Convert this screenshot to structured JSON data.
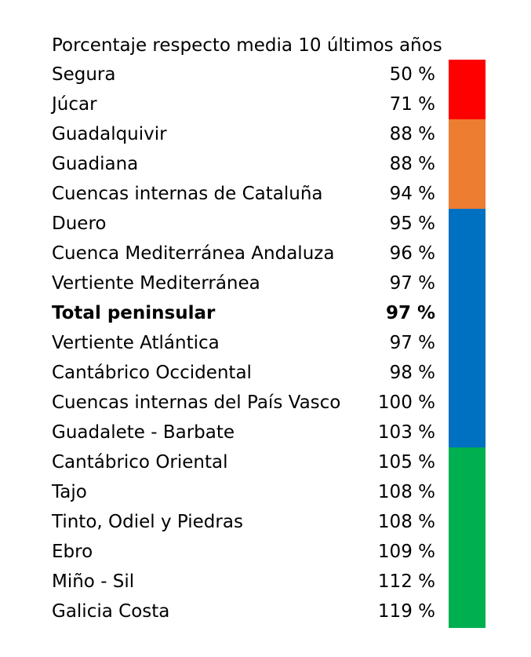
{
  "title": "Porcentaje respecto media 10 últimos años",
  "chart_data": {
    "type": "table",
    "title": "Porcentaje respecto media 10 últimos años",
    "unit": "%",
    "rows": [
      {
        "name": "Segura",
        "value": 50,
        "label": "50 %",
        "bold": false
      },
      {
        "name": "Júcar",
        "value": 71,
        "label": "71 %",
        "bold": false
      },
      {
        "name": "Guadalquivir",
        "value": 88,
        "label": "88 %",
        "bold": false
      },
      {
        "name": "Guadiana",
        "value": 88,
        "label": "88 %",
        "bold": false
      },
      {
        "name": "Cuencas internas de Cataluña",
        "value": 94,
        "label": "94 %",
        "bold": false
      },
      {
        "name": "Duero",
        "value": 95,
        "label": "95 %",
        "bold": false
      },
      {
        "name": "Cuenca Mediterránea Andaluza",
        "value": 96,
        "label": "96 %",
        "bold": false
      },
      {
        "name": "Vertiente Mediterránea",
        "value": 97,
        "label": "97 %",
        "bold": false
      },
      {
        "name": "Total peninsular",
        "value": 97,
        "label": "97 %",
        "bold": true
      },
      {
        "name": "Vertiente Atlántica",
        "value": 97,
        "label": "97 %",
        "bold": false
      },
      {
        "name": "Cantábrico Occidental",
        "value": 98,
        "label": "98 %",
        "bold": false
      },
      {
        "name": "Cuencas internas del País Vasco",
        "value": 100,
        "label": "100 %",
        "bold": false
      },
      {
        "name": "Guadalete - Barbate",
        "value": 103,
        "label": "103 %",
        "bold": false
      },
      {
        "name": "Cantábrico Oriental",
        "value": 105,
        "label": "105 %",
        "bold": false
      },
      {
        "name": "Tajo",
        "value": 108,
        "label": "108 %",
        "bold": false
      },
      {
        "name": "Tinto, Odiel y Piedras",
        "value": 108,
        "label": "108 %",
        "bold": false
      },
      {
        "name": "Ebro",
        "value": 109,
        "label": "109 %",
        "bold": false
      },
      {
        "name": "Miño - Sil",
        "value": 112,
        "label": "112 %",
        "bold": false
      },
      {
        "name": "Galicia Costa",
        "value": 119,
        "label": "119 %",
        "bold": false
      }
    ],
    "color_bands": [
      {
        "color": "#ff0000",
        "from_row": 0,
        "to_row": 1
      },
      {
        "color": "#ed7d31",
        "from_row": 2,
        "to_row": 4
      },
      {
        "color": "#0070c0",
        "from_row": 5,
        "to_row": 12
      },
      {
        "color": "#00b050",
        "from_row": 13,
        "to_row": 18
      }
    ]
  }
}
